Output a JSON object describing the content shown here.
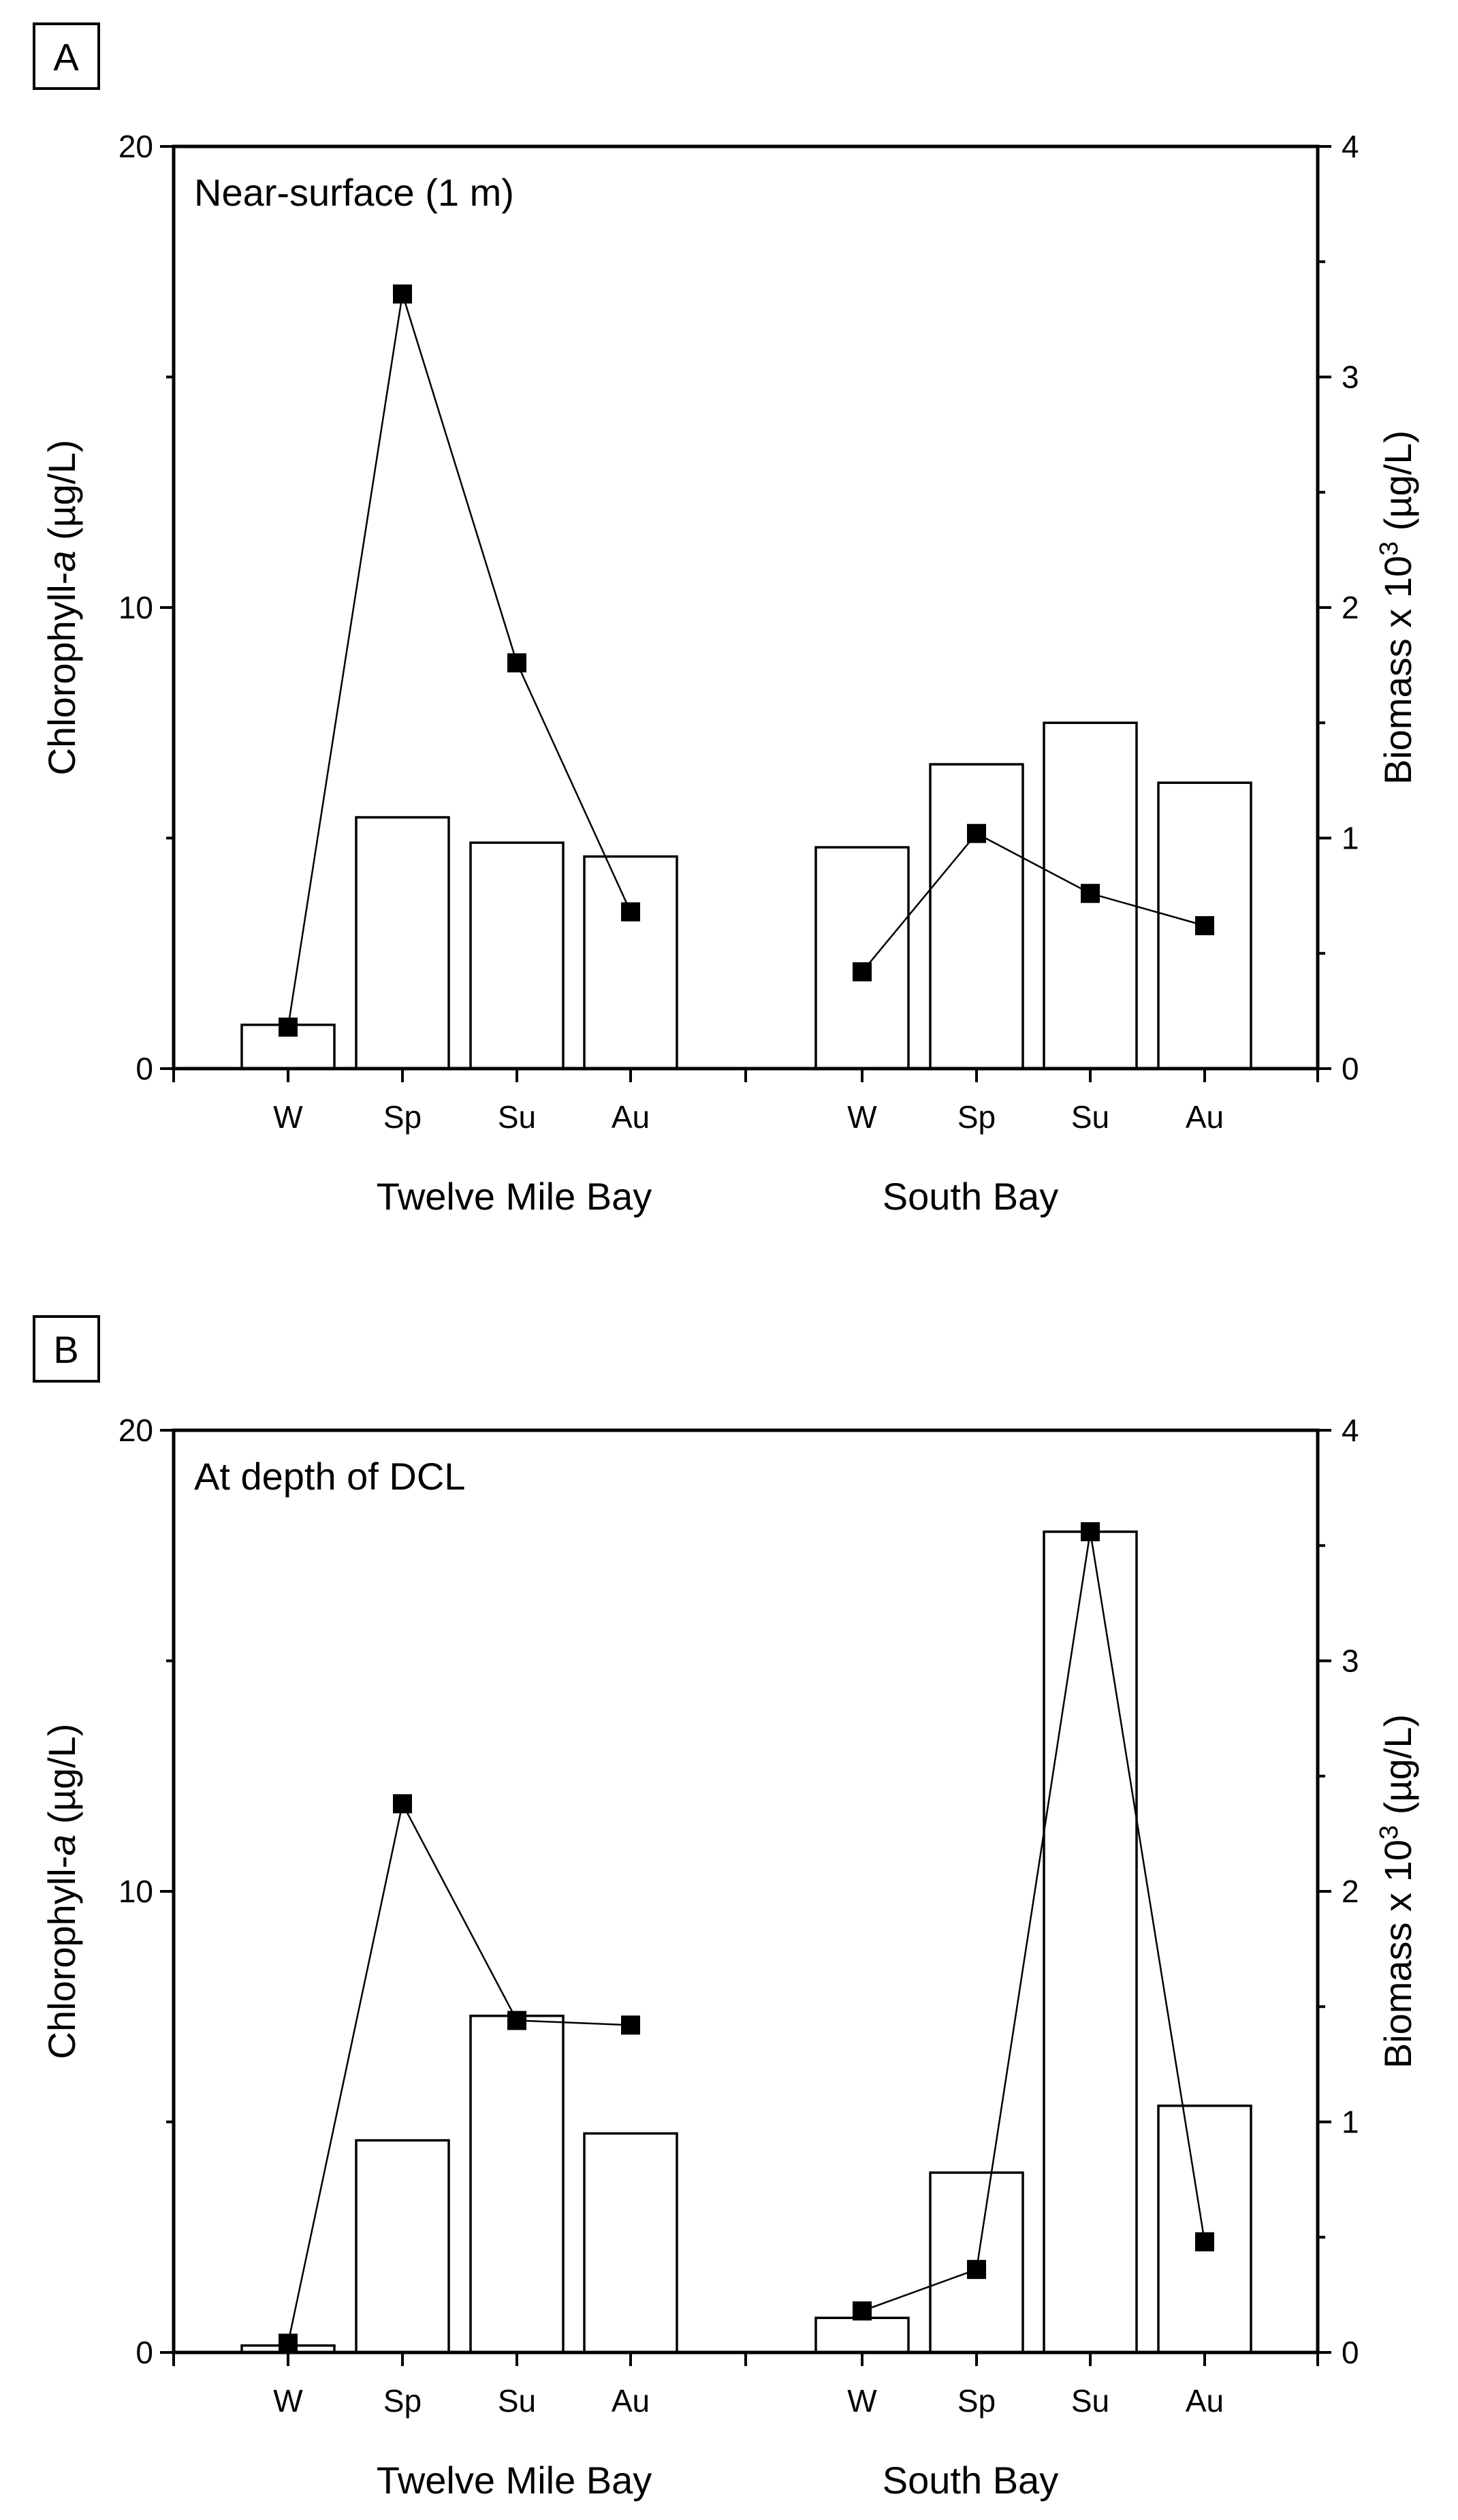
{
  "chart_data": [
    {
      "type": "bar",
      "panel_label": "A",
      "title": "Near-surface (1 m)",
      "ylabel_left": "Chlorophyll-a (µg/L)",
      "ylabel_right": "Biomass x 10³ (µg/L)",
      "left_ylim": [
        0,
        20
      ],
      "left_yticks": [
        "0",
        "10",
        "20"
      ],
      "right_ylim": [
        0,
        4
      ],
      "right_yticks": [
        "0",
        "1",
        "2",
        "3",
        "4"
      ],
      "groups": [
        {
          "name": "Twelve Mile Bay",
          "categories": [
            "W",
            "Sp",
            "Su",
            "Au"
          ],
          "biomass_bars": [
            0.19,
            1.09,
            0.98,
            0.92
          ],
          "chlorophyll_line": [
            0.9,
            16.8,
            8.8,
            3.4
          ]
        },
        {
          "name": "South Bay",
          "categories": [
            "W",
            "Sp",
            "Su",
            "Au"
          ],
          "biomass_bars": [
            0.96,
            1.32,
            1.5,
            1.24
          ],
          "chlorophyll_line": [
            2.1,
            5.1,
            3.8,
            3.1
          ]
        }
      ]
    },
    {
      "type": "bar",
      "panel_label": "B",
      "title": "At depth of DCL",
      "ylabel_left": "Chlorophyll-a (µg/L)",
      "ylabel_right": "Biomass x 10³ (µg/L)",
      "left_ylim": [
        0,
        20
      ],
      "left_yticks": [
        "0",
        "10",
        "20"
      ],
      "right_ylim": [
        0,
        4
      ],
      "right_yticks": [
        "0",
        "1",
        "2",
        "3",
        "4"
      ],
      "groups": [
        {
          "name": "Twelve Mile Bay",
          "categories": [
            "W",
            "Sp",
            "Su",
            "Au"
          ],
          "biomass_bars": [
            0.03,
            0.92,
            1.46,
            0.95
          ],
          "chlorophyll_line": [
            0.2,
            11.9,
            7.2,
            7.1
          ]
        },
        {
          "name": "South Bay",
          "categories": [
            "W",
            "Sp",
            "Su",
            "Au"
          ],
          "biomass_bars": [
            0.15,
            0.78,
            3.56,
            1.07
          ],
          "chlorophyll_line": [
            0.9,
            1.8,
            17.8,
            2.4
          ]
        }
      ]
    }
  ]
}
